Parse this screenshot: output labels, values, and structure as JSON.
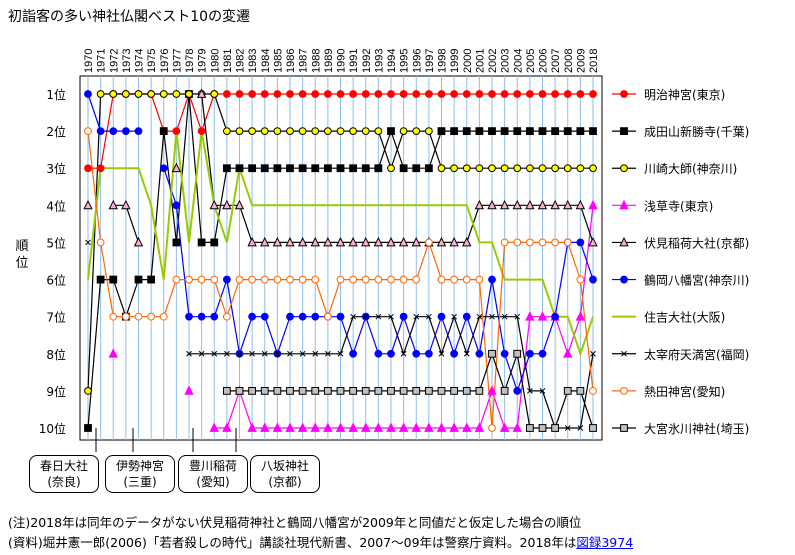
{
  "title": "初詣客の多い神社仏閣ベスト10の変遷",
  "notes": {
    "line1": "(注)2018年は同年のデータがない伏見稲荷神社と鶴岡八幡宮が2009年と同値だと仮定した場合の順位",
    "line2": "(資料)堀井憲一郎(2006)「若者殺しの時代」講談社現代新書、2007～09年は警察庁資料。2018年は",
    "link": "図録3974"
  },
  "callouts": [
    {
      "l1": "春日大社",
      "l2": "(奈良)"
    },
    {
      "l1": "伊勢神宮",
      "l2": "(三重)"
    },
    {
      "l1": "豊川稲荷",
      "l2": "(愛知)"
    },
    {
      "l1": "八坂神社",
      "l2": "(京都)"
    }
  ],
  "chart_data": {
    "type": "line",
    "title": "初詣客の多い神社仏閣ベスト10の変遷",
    "ylabel": "順位",
    "x": [
      "1970",
      "1971",
      "1972",
      "1973",
      "1974",
      "1975",
      "1976",
      "1977",
      "1978",
      "1979",
      "1980",
      "1981",
      "1982",
      "1983",
      "1984",
      "1985",
      "1986",
      "1987",
      "1988",
      "1989",
      "1990",
      "1991",
      "1992",
      "1993",
      "1994",
      "1995",
      "1996",
      "1997",
      "1998",
      "1999",
      "2000",
      "2001",
      "2002",
      "2003",
      "2004",
      "2005",
      "2006",
      "2007",
      "2008",
      "2009",
      "2018"
    ],
    "y_ticks": [
      "1位",
      "2位",
      "3位",
      "4位",
      "5位",
      "6位",
      "7位",
      "8位",
      "9位",
      "10位"
    ],
    "ylim": [
      1,
      10
    ],
    "y_inverted": true,
    "legend_position": "right",
    "series": [
      {
        "name": "明治神宮(東京)",
        "color": "#ff0000",
        "marker": "circle",
        "fill": "#ff0000",
        "values": [
          3,
          3,
          1,
          1,
          1,
          1,
          2,
          2,
          1,
          2,
          1,
          1,
          1,
          1,
          1,
          1,
          1,
          1,
          1,
          1,
          1,
          1,
          1,
          1,
          1,
          1,
          1,
          1,
          1,
          1,
          1,
          1,
          1,
          1,
          1,
          1,
          1,
          1,
          1,
          1,
          1
        ]
      },
      {
        "name": "成田山新勝寺(千葉)",
        "color": "#000000",
        "marker": "square",
        "fill": "#000000",
        "values": [
          10,
          6,
          6,
          7,
          6,
          6,
          2,
          5,
          1,
          5,
          5,
          3,
          3,
          3,
          3,
          3,
          3,
          3,
          3,
          3,
          3,
          3,
          3,
          3,
          2,
          3,
          3,
          3,
          2,
          2,
          2,
          2,
          2,
          2,
          2,
          2,
          2,
          2,
          2,
          2,
          2
        ]
      },
      {
        "name": "川崎大師(神奈川)",
        "color": "#000000",
        "marker": "circle",
        "fill": "#ffff00",
        "values": [
          9,
          1,
          1,
          1,
          1,
          1,
          1,
          1,
          1,
          1,
          1,
          2,
          2,
          2,
          2,
          2,
          2,
          2,
          2,
          2,
          2,
          2,
          2,
          2,
          3,
          2,
          2,
          2,
          3,
          3,
          3,
          3,
          3,
          3,
          3,
          3,
          3,
          3,
          3,
          3,
          3
        ]
      },
      {
        "name": "浅草寺(東京)",
        "color": "#ff00ff",
        "marker": "triangle",
        "fill": "#ff00ff",
        "values": [
          null,
          null,
          8,
          null,
          null,
          null,
          null,
          null,
          9,
          null,
          10,
          10,
          9,
          10,
          10,
          10,
          10,
          10,
          10,
          10,
          10,
          10,
          10,
          10,
          10,
          10,
          10,
          10,
          10,
          10,
          10,
          10,
          9,
          10,
          10,
          7,
          7,
          7,
          8,
          7,
          4
        ]
      },
      {
        "name": "伏見稲荷大社(京都)",
        "color": "#000000",
        "marker": "triangle",
        "fill": "#ffb0c8",
        "values": [
          4,
          null,
          4,
          4,
          5,
          null,
          null,
          3,
          null,
          1,
          4,
          4,
          4,
          5,
          5,
          5,
          5,
          5,
          5,
          5,
          5,
          5,
          5,
          5,
          5,
          5,
          5,
          5,
          5,
          5,
          5,
          4,
          4,
          4,
          4,
          4,
          4,
          4,
          4,
          4,
          5
        ]
      },
      {
        "name": "鶴岡八幡宮(神奈川)",
        "color": "#0000ff",
        "marker": "circle",
        "fill": "#0000ff",
        "values": [
          1,
          2,
          2,
          2,
          2,
          null,
          3,
          4,
          7,
          7,
          7,
          6,
          8,
          7,
          7,
          8,
          7,
          7,
          7,
          7,
          7,
          8,
          7,
          8,
          8,
          7,
          8,
          8,
          7,
          8,
          7,
          8,
          6,
          8,
          9,
          8,
          8,
          7,
          5,
          5,
          6
        ]
      },
      {
        "name": "住吉大社(大阪)",
        "color": "#99cc00",
        "marker": "none",
        "fill": "none",
        "values": [
          6,
          3,
          3,
          3,
          3,
          4,
          6,
          2,
          5,
          2,
          4,
          5,
          3,
          4,
          4,
          4,
          4,
          4,
          4,
          4,
          4,
          4,
          4,
          4,
          4,
          4,
          4,
          4,
          4,
          4,
          4,
          5,
          5,
          6,
          6,
          6,
          6,
          7,
          7,
          8,
          7
        ]
      },
      {
        "name": "太宰府天満宮(福岡)",
        "color": "#000000",
        "marker": "x",
        "fill": "none",
        "values": [
          5,
          null,
          null,
          null,
          null,
          null,
          null,
          null,
          8,
          8,
          8,
          8,
          8,
          8,
          8,
          8,
          8,
          8,
          8,
          8,
          8,
          7,
          7,
          7,
          7,
          8,
          7,
          7,
          8,
          7,
          8,
          7,
          7,
          7,
          7,
          9,
          9,
          10,
          10,
          10,
          8
        ]
      },
      {
        "name": "熱田神宮(愛知)",
        "color": "#ff6600",
        "marker": "circle",
        "fill": "#ffffff",
        "values": [
          2,
          5,
          7,
          7,
          7,
          7,
          7,
          6,
          6,
          6,
          6,
          7,
          6,
          6,
          6,
          6,
          6,
          6,
          6,
          7,
          6,
          6,
          6,
          6,
          6,
          6,
          6,
          5,
          6,
          6,
          6,
          6,
          10,
          5,
          5,
          5,
          5,
          5,
          5,
          6,
          9
        ]
      },
      {
        "name": "大宮氷川神社(埼玉)",
        "color": "#000000",
        "marker": "square",
        "fill": "#c0c0c0",
        "values": [
          null,
          null,
          null,
          null,
          null,
          null,
          null,
          null,
          null,
          null,
          null,
          9,
          9,
          9,
          9,
          9,
          9,
          9,
          9,
          9,
          9,
          9,
          9,
          9,
          9,
          9,
          9,
          9,
          9,
          9,
          9,
          9,
          8,
          9,
          8,
          10,
          10,
          10,
          9,
          9,
          10
        ]
      }
    ]
  }
}
